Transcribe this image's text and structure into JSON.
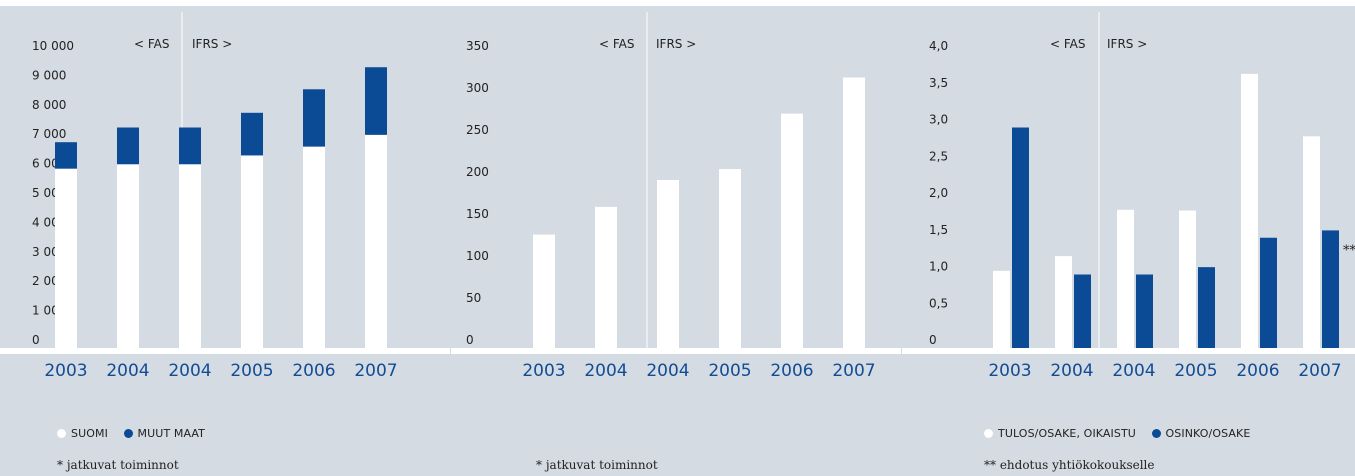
{
  "colors": {
    "background": "#d4dbe2",
    "primary": "#ffffff",
    "secondary": "#0b4a94",
    "year_text": "#124c95"
  },
  "chart_data": [
    {
      "type": "bar",
      "stacked": true,
      "annotations": [
        "< FAS",
        "IFRS >"
      ],
      "categories": [
        "2003",
        "2004",
        "2004",
        "2005",
        "2006",
        "2007"
      ],
      "series": [
        {
          "name": "SUOMI",
          "values": [
            6100,
            6250,
            6250,
            6550,
            6850,
            7250
          ]
        },
        {
          "name": "MUUT MAAT",
          "values": [
            900,
            1250,
            1250,
            1450,
            1950,
            2300
          ]
        }
      ],
      "ylim": [
        0,
        10000
      ],
      "yticks": [
        "0",
        "1 000",
        "2 000",
        "3 000",
        "4 000",
        "5 000",
        "6 000",
        "7 000",
        "8 000",
        "9 000",
        "10 000"
      ],
      "legend": [
        "SUOMI",
        "MUUT MAAT"
      ],
      "note": "* jatkuvat toiminnot"
    },
    {
      "type": "bar",
      "annotations": [
        "< FAS",
        "IFRS >"
      ],
      "categories": [
        "2003",
        "2004",
        "2004",
        "2005",
        "2006",
        "2007"
      ],
      "series": [
        {
          "values": [
            135,
            168,
            200,
            213,
            279,
            322
          ]
        }
      ],
      "ylim": [
        0,
        350
      ],
      "yticks": [
        "0",
        "50",
        "100",
        "150",
        "200",
        "250",
        "300",
        "350"
      ],
      "note": "* jatkuvat toiminnot"
    },
    {
      "type": "bar",
      "annotations": [
        "< FAS",
        "IFRS >"
      ],
      "categories": [
        "2003",
        "2004",
        "2004",
        "2005",
        "2006",
        "2007"
      ],
      "series": [
        {
          "name": "TULOS/OSAKE, OIKAISTU",
          "values": [
            1.05,
            1.25,
            1.88,
            1.87,
            3.73,
            2.88
          ]
        },
        {
          "name": "OSINKO/OSAKE",
          "values": [
            3.0,
            1.0,
            1.0,
            1.1,
            1.5,
            1.6
          ]
        }
      ],
      "ylim": [
        0,
        4.0
      ],
      "yticks": [
        "0",
        "0,5",
        "1,0",
        "1,5",
        "2,0",
        "2,5",
        "3,0",
        "3,5",
        "4,0"
      ],
      "bar_annotation": "**",
      "legend": [
        "TULOS/OSAKE, OIKAISTU",
        "OSINKO/OSAKE"
      ],
      "note": "** ehdotus yhtiökokoukselle"
    }
  ]
}
